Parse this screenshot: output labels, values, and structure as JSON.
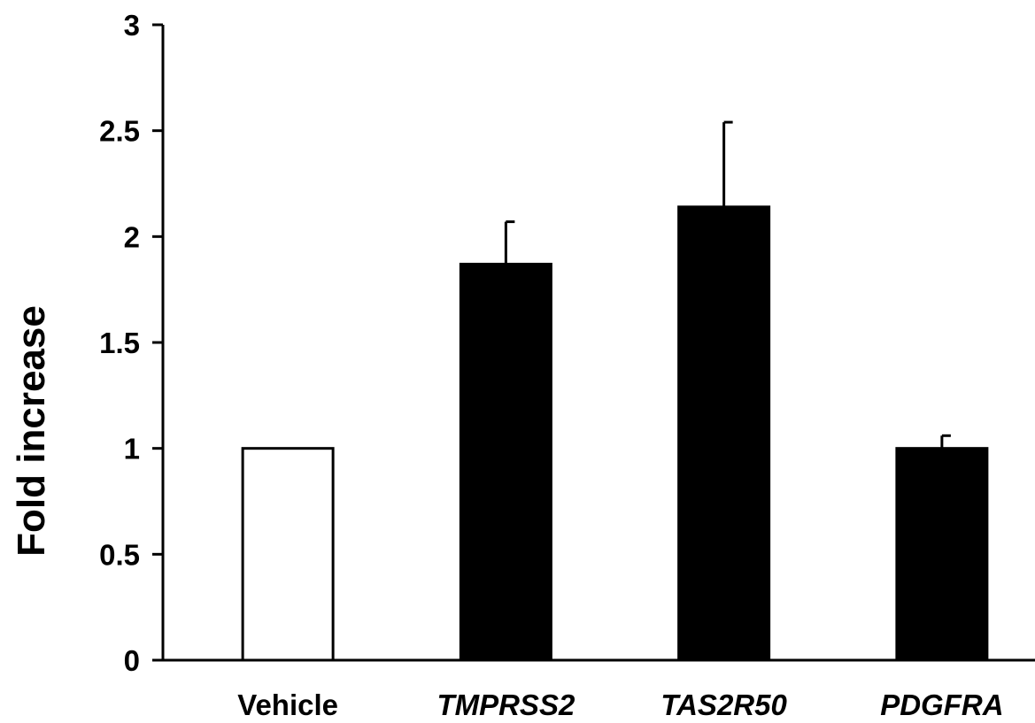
{
  "chart_data": {
    "type": "bar",
    "title": "",
    "xlabel": "",
    "ylabel": "Fold increase",
    "ylim": [
      0,
      3
    ],
    "yticks": [
      0,
      0.5,
      1,
      1.5,
      2,
      2.5,
      3
    ],
    "ytick_labels": [
      "0",
      "0.5",
      "1",
      "1.5",
      "2",
      "2.5",
      "3"
    ],
    "categories": [
      "Vehicle",
      "TMPRSS2",
      "TAS2R50",
      "PDGFRA"
    ],
    "category_italic": [
      false,
      true,
      true,
      true
    ],
    "values": [
      1.0,
      1.87,
      2.14,
      1.0
    ],
    "errors": [
      0,
      0.2,
      0.4,
      0.06
    ],
    "bar_fills": [
      "#ffffff",
      "#000000",
      "#000000",
      "#000000"
    ],
    "bar_stroke": "#000000",
    "grid": false,
    "legend": "none"
  }
}
